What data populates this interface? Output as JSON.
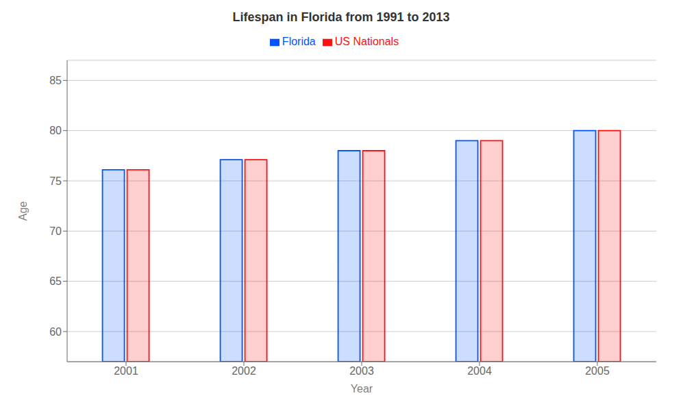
{
  "chart_data": {
    "type": "bar",
    "title": "Lifespan in Florida from 1991 to 2013",
    "xlabel": "Year",
    "ylabel": "Age",
    "categories": [
      "2001",
      "2002",
      "2003",
      "2004",
      "2005"
    ],
    "series": [
      {
        "name": "Florida",
        "color": "#0055ff",
        "values": [
          76.1,
          77.1,
          78.0,
          79.0,
          80.0
        ]
      },
      {
        "name": "US Nationals",
        "color": "#ff1111",
        "values": [
          76.1,
          77.1,
          78.0,
          79.0,
          80.0
        ]
      }
    ],
    "ylim": [
      57,
      87
    ],
    "yticks": [
      60,
      65,
      70,
      75,
      80,
      85
    ],
    "grid": true,
    "legend": "top"
  }
}
